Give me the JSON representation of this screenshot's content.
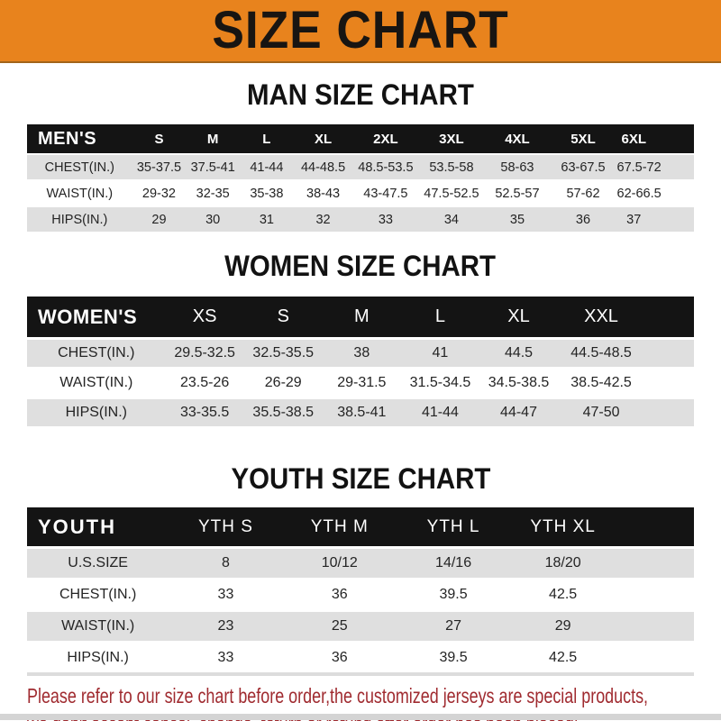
{
  "banner": {
    "title": "SIZE CHART"
  },
  "colors": {
    "banner_orange": "#E8831D",
    "header_black": "#141414",
    "row_gray": "#DFDFDF",
    "footer_red": "#A02B30"
  },
  "sections": [
    {
      "id": "men",
      "title": "MAN SIZE CHART",
      "header": [
        "MEN'S",
        "S",
        "M",
        "L",
        "XL",
        "2XL",
        "3XL",
        "4XL",
        "5XL",
        "6XL"
      ],
      "rows": [
        [
          "CHEST(IN.)",
          "35-37.5",
          "37.5-41",
          "41-44",
          "44-48.5",
          "48.5-53.5",
          "53.5-58",
          "58-63",
          "63-67.5",
          "67.5-72"
        ],
        [
          "WAIST(IN.)",
          "29-32",
          "32-35",
          "35-38",
          "38-43",
          "43-47.5",
          "47.5-52.5",
          "52.5-57",
          "57-62",
          "62-66.5"
        ],
        [
          "HIPS(IN.)",
          "29",
          "30",
          "31",
          "32",
          "33",
          "34",
          "35",
          "36",
          "37"
        ]
      ]
    },
    {
      "id": "women",
      "title": "WOMEN SIZE CHART",
      "header": [
        "WOMEN'S",
        "XS",
        "S",
        "M",
        "L",
        "XL",
        "XXL"
      ],
      "rows": [
        [
          "CHEST(IN.)",
          "29.5-32.5",
          "32.5-35.5",
          "38",
          "41",
          "44.5",
          "44.5-48.5"
        ],
        [
          "WAIST(IN.)",
          "23.5-26",
          "26-29",
          "29-31.5",
          "31.5-34.5",
          "34.5-38.5",
          "38.5-42.5"
        ],
        [
          "HIPS(IN.)",
          "33-35.5",
          "35.5-38.5",
          "38.5-41",
          "41-44",
          "44-47",
          "47-50"
        ]
      ]
    },
    {
      "id": "youth",
      "title": "YOUTH SIZE CHART",
      "header": [
        "YOUTH",
        "YTH S",
        "YTH M",
        "YTH L",
        "YTH XL"
      ],
      "rows": [
        [
          "U.S.SIZE",
          "8",
          "10/12",
          "14/16",
          "18/20"
        ],
        [
          "CHEST(IN.)",
          "33",
          "36",
          "39.5",
          "42.5"
        ],
        [
          "WAIST(IN.)",
          "23",
          "25",
          "27",
          "29"
        ],
        [
          "HIPS(IN.)",
          "33",
          "36",
          "39.5",
          "42.5"
        ]
      ]
    }
  ],
  "footer": {
    "line1": "Please refer to our size chart before order,the customized jerseys are special products,",
    "line2": "we don't accept cancel, change, teturn or refund after order has been placed!"
  }
}
